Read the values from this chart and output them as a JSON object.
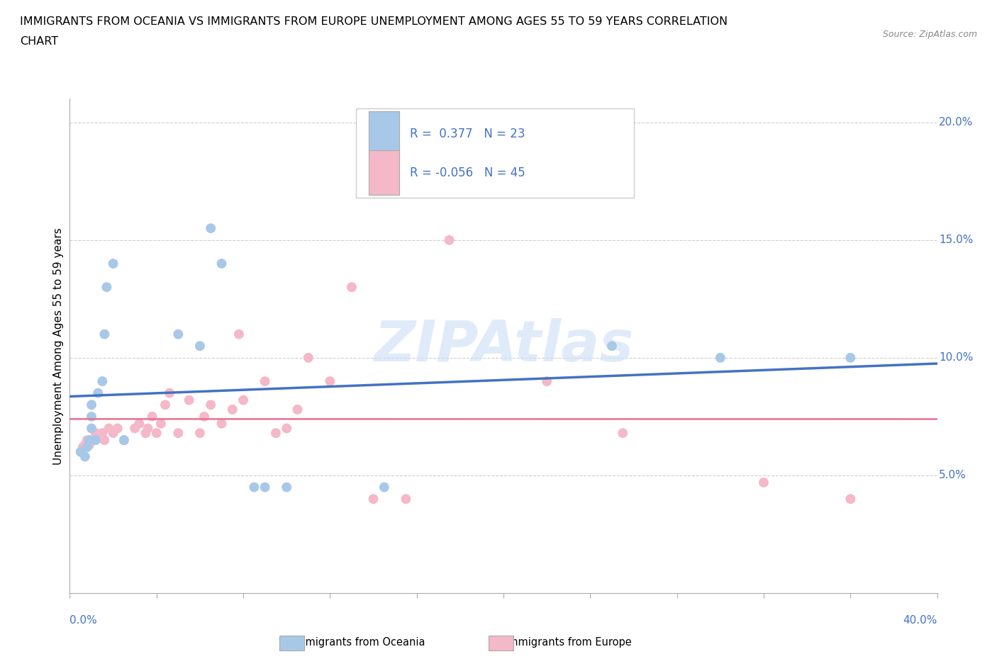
{
  "title_line1": "IMMIGRANTS FROM OCEANIA VS IMMIGRANTS FROM EUROPE UNEMPLOYMENT AMONG AGES 55 TO 59 YEARS CORRELATION",
  "title_line2": "CHART",
  "source": "Source: ZipAtlas.com",
  "ylabel": "Unemployment Among Ages 55 to 59 years",
  "xmin": 0.0,
  "xmax": 0.4,
  "ymin": 0.0,
  "ymax": 0.21,
  "yticks": [
    0.05,
    0.1,
    0.15,
    0.2
  ],
  "ytick_labels": [
    "5.0%",
    "10.0%",
    "15.0%",
    "20.0%"
  ],
  "watermark": "ZIPAtlas",
  "oceania_color": "#a8c8e8",
  "europe_color": "#f4b8c8",
  "line_oceania_color": "#4472c4",
  "line_europe_color": "#e87090",
  "tick_label_color": "#4472c4",
  "oceania_x": [
    0.005,
    0.007,
    0.008,
    0.009,
    0.01,
    0.01,
    0.01,
    0.012,
    0.013,
    0.015,
    0.016,
    0.017,
    0.02,
    0.025,
    0.05,
    0.06,
    0.065,
    0.07,
    0.085,
    0.09,
    0.1,
    0.145,
    0.25,
    0.3,
    0.36
  ],
  "oceania_y": [
    0.06,
    0.058,
    0.062,
    0.065,
    0.07,
    0.075,
    0.08,
    0.065,
    0.085,
    0.09,
    0.11,
    0.13,
    0.14,
    0.065,
    0.11,
    0.105,
    0.155,
    0.14,
    0.045,
    0.045,
    0.045,
    0.045,
    0.105,
    0.1,
    0.1
  ],
  "europe_x": [
    0.005,
    0.006,
    0.007,
    0.008,
    0.009,
    0.01,
    0.012,
    0.015,
    0.016,
    0.018,
    0.02,
    0.022,
    0.025,
    0.03,
    0.032,
    0.035,
    0.036,
    0.038,
    0.04,
    0.042,
    0.044,
    0.046,
    0.05,
    0.055,
    0.06,
    0.062,
    0.065,
    0.07,
    0.075,
    0.078,
    0.08,
    0.09,
    0.095,
    0.1,
    0.105,
    0.11,
    0.12,
    0.13,
    0.14,
    0.155,
    0.175,
    0.22,
    0.255,
    0.32,
    0.36
  ],
  "europe_y": [
    0.06,
    0.062,
    0.063,
    0.065,
    0.063,
    0.065,
    0.068,
    0.068,
    0.065,
    0.07,
    0.068,
    0.07,
    0.065,
    0.07,
    0.072,
    0.068,
    0.07,
    0.075,
    0.068,
    0.072,
    0.08,
    0.085,
    0.068,
    0.082,
    0.068,
    0.075,
    0.08,
    0.072,
    0.078,
    0.11,
    0.082,
    0.09,
    0.068,
    0.07,
    0.078,
    0.1,
    0.09,
    0.13,
    0.04,
    0.04,
    0.15,
    0.09,
    0.068,
    0.047,
    0.04
  ],
  "background_color": "#ffffff",
  "grid_color": "#d0d0d0"
}
